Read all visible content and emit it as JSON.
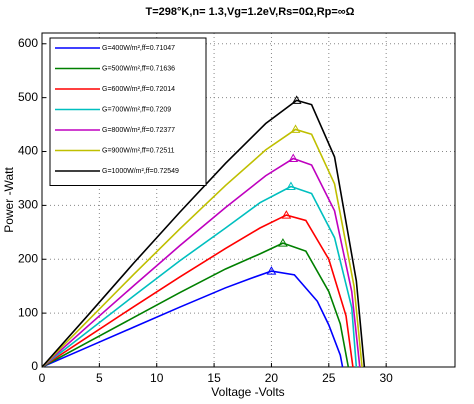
{
  "chart_data": {
    "type": "line",
    "title": "T=298°K,n= 1.3,Vg=1.2eV,Rs=0Ω,Rp=∞Ω",
    "x_label": "Voltage -Volts",
    "y_label": "Power -Watt",
    "xlim": [
      0,
      36
    ],
    "ylim": [
      0,
      620
    ],
    "xticks": [
      0,
      5,
      10,
      15,
      20,
      25,
      30
    ],
    "yticks": [
      0,
      100,
      200,
      300,
      400,
      500,
      600
    ],
    "grid": true,
    "legend": "upper left",
    "series": [
      {
        "name": "G=400W/m²,ff=0.71047",
        "color": "#0000ff",
        "x": [
          0,
          4,
          8,
          12,
          16,
          18,
          20,
          22,
          24,
          25,
          26,
          26.2
        ],
        "values": [
          0,
          37,
          74,
          111,
          147,
          163,
          178,
          171,
          122,
          78,
          22,
          0
        ],
        "peak": {
          "x": 20,
          "y": 178
        }
      },
      {
        "name": "G=500W/m²,ff=0.71636",
        "color": "#008000",
        "x": [
          0,
          4,
          8,
          12,
          16,
          19,
          21,
          23,
          25,
          26,
          26.7
        ],
        "values": [
          0,
          46,
          92,
          138,
          182,
          210,
          230,
          215,
          140,
          80,
          0
        ],
        "peak": {
          "x": 21,
          "y": 230
        }
      },
      {
        "name": "G=600W/m²,ff=0.72014",
        "color": "#ff0000",
        "x": [
          0,
          4,
          8,
          12,
          16,
          19,
          21.3,
          23,
          25,
          26.5,
          27.1
        ],
        "values": [
          0,
          56,
          112,
          167,
          220,
          258,
          282,
          272,
          200,
          95,
          0
        ],
        "peak": {
          "x": 21.3,
          "y": 282
        }
      },
      {
        "name": "G=700W/m²,ff=0.7209",
        "color": "#00bfbf",
        "x": [
          0,
          4,
          8,
          12,
          16,
          19,
          21.7,
          23.5,
          25.5,
          27,
          27.4
        ],
        "values": [
          0,
          66,
          132,
          197,
          258,
          305,
          335,
          322,
          240,
          110,
          0
        ],
        "peak": {
          "x": 21.7,
          "y": 335
        }
      },
      {
        "name": "G=800W/m²,ff=0.72377",
        "color": "#bf00bf",
        "x": [
          0,
          4,
          8,
          12,
          16,
          19.5,
          21.9,
          23.5,
          25.5,
          27,
          27.7
        ],
        "values": [
          0,
          76,
          151,
          225,
          296,
          355,
          387,
          375,
          290,
          140,
          0
        ],
        "peak": {
          "x": 21.9,
          "y": 387
        }
      },
      {
        "name": "G=900W/m²,ff=0.72511",
        "color": "#bfbf00",
        "x": [
          0,
          4,
          8,
          12,
          16,
          19.5,
          22.1,
          23.5,
          25.5,
          27.2,
          27.9
        ],
        "values": [
          0,
          86,
          172,
          256,
          337,
          403,
          441,
          432,
          340,
          150,
          0
        ],
        "peak": {
          "x": 22.1,
          "y": 441
        }
      },
      {
        "name": "G=1000W/m²,ff=0.72549",
        "color": "#000000",
        "x": [
          0,
          4,
          8,
          12,
          16,
          19.5,
          22.2,
          23.5,
          25.5,
          27.4,
          28.1
        ],
        "values": [
          0,
          96,
          193,
          287,
          378,
          452,
          495,
          487,
          390,
          160,
          0
        ],
        "peak": {
          "x": 22.2,
          "y": 495
        }
      }
    ]
  }
}
